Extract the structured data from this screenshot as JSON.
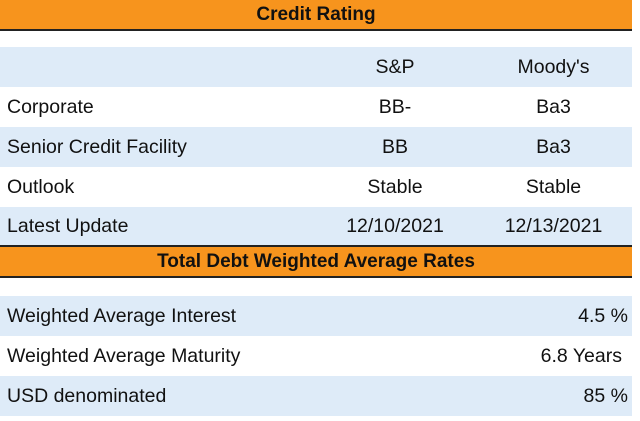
{
  "credit_rating": {
    "title": "Credit Rating",
    "columns": [
      "S&P",
      "Moody's"
    ],
    "rows": [
      {
        "label": "Corporate",
        "sp": "BB-",
        "moodys": "Ba3"
      },
      {
        "label": "Senior Credit Facility",
        "sp": "BB",
        "moodys": "Ba3"
      },
      {
        "label": "Outlook",
        "sp": "Stable",
        "moodys": "Stable"
      },
      {
        "label": "Latest Update",
        "sp": "12/10/2021",
        "moodys": "12/13/2021"
      }
    ]
  },
  "debt_rates": {
    "title": "Total Debt Weighted Average Rates",
    "rows": [
      {
        "label": "Weighted Average Interest",
        "value": "4.5 %"
      },
      {
        "label": "Weighted Average Maturity",
        "value": "6.8 Years"
      },
      {
        "label": "USD denominated",
        "value": "85 %"
      }
    ]
  }
}
